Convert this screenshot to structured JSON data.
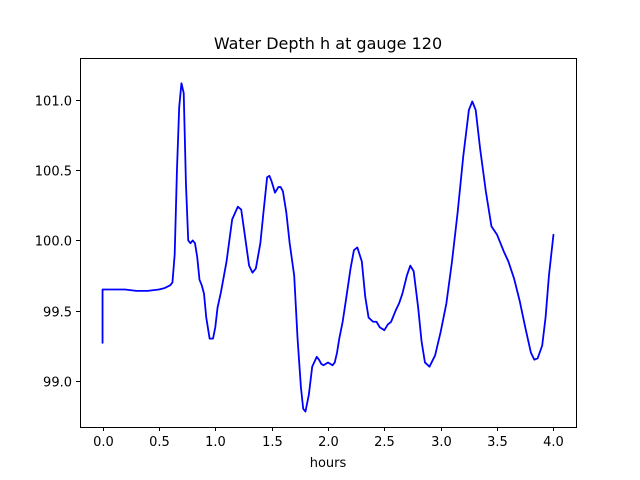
{
  "chart_data": {
    "type": "line",
    "title": "Water Depth h at gauge 120",
    "xlabel": "hours",
    "ylabel": "",
    "xlim": [
      -0.2,
      4.2
    ],
    "ylim": [
      98.67,
      101.3
    ],
    "x_ticks": [
      0.0,
      0.5,
      1.0,
      1.5,
      2.0,
      2.5,
      3.0,
      3.5,
      4.0
    ],
    "x_tick_labels": [
      "0.0",
      "0.5",
      "1.0",
      "1.5",
      "2.0",
      "2.5",
      "3.0",
      "3.5",
      "4.0"
    ],
    "y_ticks": [
      99.0,
      99.5,
      100.0,
      100.5,
      101.0
    ],
    "y_tick_labels": [
      "99.0",
      "99.5",
      "100.0",
      "100.5",
      "101.0"
    ],
    "grid": false,
    "series": [
      {
        "color": "#0000ff",
        "x": [
          0.0,
          0.0,
          0.1,
          0.2,
          0.3,
          0.35,
          0.4,
          0.5,
          0.55,
          0.6,
          0.62,
          0.64,
          0.66,
          0.68,
          0.7,
          0.72,
          0.74,
          0.76,
          0.78,
          0.8,
          0.82,
          0.84,
          0.86,
          0.88,
          0.9,
          0.92,
          0.95,
          0.98,
          1.0,
          1.02,
          1.05,
          1.1,
          1.15,
          1.2,
          1.23,
          1.26,
          1.3,
          1.33,
          1.36,
          1.4,
          1.43,
          1.46,
          1.48,
          1.5,
          1.53,
          1.56,
          1.58,
          1.6,
          1.63,
          1.66,
          1.7,
          1.73,
          1.76,
          1.78,
          1.8,
          1.83,
          1.86,
          1.9,
          1.92,
          1.94,
          1.96,
          1.98,
          2.0,
          2.02,
          2.04,
          2.06,
          2.08,
          2.1,
          2.13,
          2.16,
          2.2,
          2.23,
          2.26,
          2.3,
          2.33,
          2.36,
          2.4,
          2.43,
          2.46,
          2.5,
          2.53,
          2.56,
          2.6,
          2.63,
          2.66,
          2.7,
          2.73,
          2.76,
          2.8,
          2.83,
          2.86,
          2.9,
          2.95,
          3.0,
          3.05,
          3.1,
          3.15,
          3.2,
          3.25,
          3.28,
          3.31,
          3.35,
          3.4,
          3.45,
          3.5,
          3.53,
          3.56,
          3.6,
          3.65,
          3.7,
          3.75,
          3.8,
          3.83,
          3.86,
          3.9,
          3.93,
          3.96,
          4.0
        ],
        "y": [
          99.27,
          99.65,
          99.65,
          99.65,
          99.64,
          99.64,
          99.64,
          99.65,
          99.66,
          99.68,
          99.7,
          99.9,
          100.5,
          100.95,
          101.12,
          101.05,
          100.4,
          100.0,
          99.98,
          100.0,
          99.98,
          99.88,
          99.72,
          99.68,
          99.62,
          99.45,
          99.3,
          99.3,
          99.38,
          99.52,
          99.63,
          99.85,
          100.15,
          100.24,
          100.22,
          100.05,
          99.82,
          99.77,
          99.8,
          99.98,
          100.22,
          100.45,
          100.46,
          100.42,
          100.34,
          100.38,
          100.38,
          100.35,
          100.2,
          99.98,
          99.75,
          99.3,
          98.95,
          98.8,
          98.78,
          98.9,
          99.1,
          99.17,
          99.15,
          99.12,
          99.11,
          99.12,
          99.13,
          99.12,
          99.11,
          99.13,
          99.2,
          99.3,
          99.42,
          99.58,
          99.8,
          99.93,
          99.95,
          99.85,
          99.6,
          99.45,
          99.42,
          99.42,
          99.38,
          99.36,
          99.4,
          99.42,
          99.5,
          99.55,
          99.62,
          99.75,
          99.82,
          99.78,
          99.52,
          99.28,
          99.13,
          99.1,
          99.18,
          99.35,
          99.55,
          99.85,
          100.2,
          100.6,
          100.93,
          100.99,
          100.93,
          100.65,
          100.35,
          100.1,
          100.04,
          99.98,
          99.92,
          99.85,
          99.73,
          99.57,
          99.38,
          99.2,
          99.15,
          99.16,
          99.25,
          99.45,
          99.75,
          100.04
        ]
      }
    ]
  }
}
